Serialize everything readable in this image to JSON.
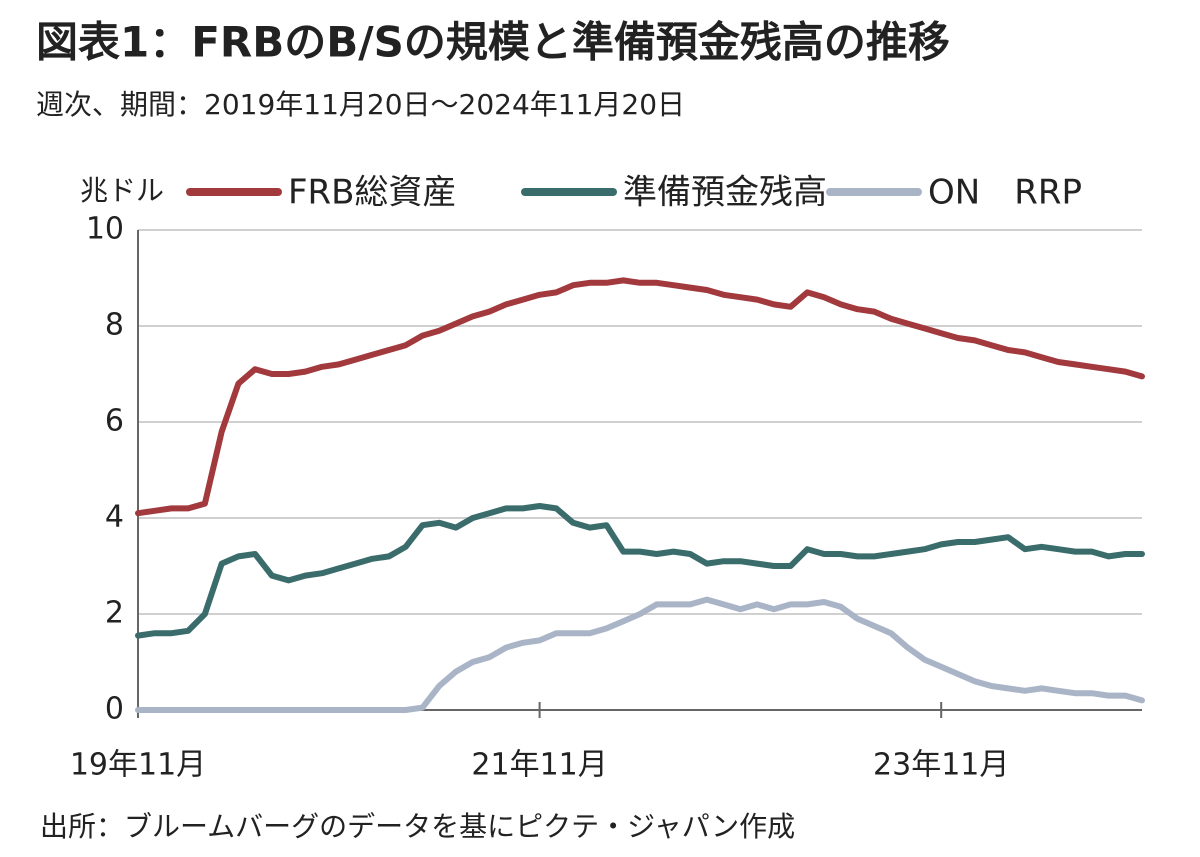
{
  "chart_data": {
    "type": "line",
    "title": "図表1：FRBのB/Sの規模と準備預金残高の推移",
    "subtitle": "週次、期間：2019年11月20日～2024年11月20日",
    "y_label": "兆ドル",
    "source": "出所：ブルームバーグのデータを基にピクテ・ジャパン作成",
    "x": [
      "2019-11",
      "2019-12",
      "2020-01",
      "2020-02",
      "2020-03",
      "2020-04",
      "2020-05",
      "2020-06",
      "2020-07",
      "2020-08",
      "2020-09",
      "2020-10",
      "2020-11",
      "2020-12",
      "2021-01",
      "2021-02",
      "2021-03",
      "2021-04",
      "2021-05",
      "2021-06",
      "2021-07",
      "2021-08",
      "2021-09",
      "2021-10",
      "2021-11",
      "2021-12",
      "2022-01",
      "2022-02",
      "2022-03",
      "2022-04",
      "2022-05",
      "2022-06",
      "2022-07",
      "2022-08",
      "2022-09",
      "2022-10",
      "2022-11",
      "2022-12",
      "2023-01",
      "2023-02",
      "2023-03",
      "2023-04",
      "2023-05",
      "2023-06",
      "2023-07",
      "2023-08",
      "2023-09",
      "2023-10",
      "2023-11",
      "2023-12",
      "2024-01",
      "2024-02",
      "2024-03",
      "2024-04",
      "2024-05",
      "2024-06",
      "2024-07",
      "2024-08",
      "2024-09",
      "2024-10",
      "2024-11"
    ],
    "xlim": [
      "2019-11",
      "2024-11"
    ],
    "xticks": [
      {
        "value": "2019-11",
        "label": "19年11月"
      },
      {
        "value": "2021-11",
        "label": "21年11月"
      },
      {
        "value": "2023-11",
        "label": "23年11月"
      }
    ],
    "ylim": [
      0,
      10
    ],
    "yticks": [
      0,
      2,
      4,
      6,
      8,
      10
    ],
    "grid": true,
    "legend": "top",
    "series": [
      {
        "name": "FRB総資産",
        "color": "#a23a3d",
        "values": [
          4.1,
          4.15,
          4.2,
          4.2,
          4.3,
          5.8,
          6.8,
          7.1,
          7.0,
          7.0,
          7.05,
          7.15,
          7.2,
          7.3,
          7.4,
          7.5,
          7.6,
          7.8,
          7.9,
          8.05,
          8.2,
          8.3,
          8.45,
          8.55,
          8.65,
          8.7,
          8.85,
          8.9,
          8.9,
          8.95,
          8.9,
          8.9,
          8.85,
          8.8,
          8.75,
          8.65,
          8.6,
          8.55,
          8.45,
          8.4,
          8.7,
          8.6,
          8.45,
          8.35,
          8.3,
          8.15,
          8.05,
          7.95,
          7.85,
          7.75,
          7.7,
          7.6,
          7.5,
          7.45,
          7.35,
          7.25,
          7.2,
          7.15,
          7.1,
          7.05,
          6.95
        ]
      },
      {
        "name": "準備預金残高",
        "color": "#3b6c6c",
        "values": [
          1.55,
          1.6,
          1.6,
          1.65,
          2.0,
          3.05,
          3.2,
          3.25,
          2.8,
          2.7,
          2.8,
          2.85,
          2.95,
          3.05,
          3.15,
          3.2,
          3.4,
          3.85,
          3.9,
          3.8,
          4.0,
          4.1,
          4.2,
          4.2,
          4.25,
          4.2,
          3.9,
          3.8,
          3.85,
          3.3,
          3.3,
          3.25,
          3.3,
          3.25,
          3.05,
          3.1,
          3.1,
          3.05,
          3.0,
          3.0,
          3.35,
          3.25,
          3.25,
          3.2,
          3.2,
          3.25,
          3.3,
          3.35,
          3.45,
          3.5,
          3.5,
          3.55,
          3.6,
          3.35,
          3.4,
          3.35,
          3.3,
          3.3,
          3.2,
          3.25,
          3.25
        ]
      },
      {
        "name": "ON　RRP",
        "color": "#a9b5c7",
        "values": [
          0,
          0,
          0,
          0,
          0,
          0,
          0,
          0,
          0,
          0,
          0,
          0,
          0,
          0,
          0,
          0,
          0,
          0.05,
          0.5,
          0.8,
          1.0,
          1.1,
          1.3,
          1.4,
          1.45,
          1.6,
          1.6,
          1.6,
          1.7,
          1.85,
          2.0,
          2.2,
          2.2,
          2.2,
          2.3,
          2.2,
          2.1,
          2.2,
          2.1,
          2.2,
          2.2,
          2.25,
          2.15,
          1.9,
          1.75,
          1.6,
          1.3,
          1.05,
          0.9,
          0.75,
          0.6,
          0.5,
          0.45,
          0.4,
          0.45,
          0.4,
          0.35,
          0.35,
          0.3,
          0.3,
          0.2
        ]
      }
    ]
  }
}
